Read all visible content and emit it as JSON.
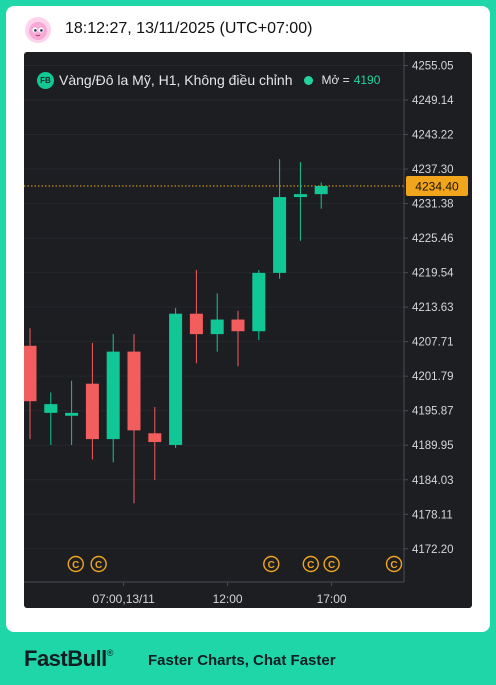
{
  "header": {
    "timestamp": "18:12:27, 13/11/2025 (UTC+07:00)"
  },
  "legend": {
    "badge": "FB",
    "instrument": "Vàng/Đô la Mỹ, H1, Không điều chỉnh",
    "open_label": "Mở =",
    "open_value": "4190"
  },
  "footer": {
    "brand": "FastBull",
    "registered": "®",
    "tagline": "Faster Charts, Chat Faster"
  },
  "colors": {
    "up": "#10c795",
    "down": "#f25d5d",
    "background": "#1d1e22",
    "price_tag": "#f0a51c",
    "event_marker": "#f0a51c"
  },
  "chart_data": {
    "type": "candlestick",
    "y_axis": {
      "min": 4166.5,
      "max": 4256,
      "ticks": [
        "4255.05",
        "4249.14",
        "4243.22",
        "4237.30",
        "4231.38",
        "4225.46",
        "4219.54",
        "4213.63",
        "4207.71",
        "4201.79",
        "4195.87",
        "4189.95",
        "4184.03",
        "4178.11",
        "4172.20"
      ],
      "position": "right"
    },
    "x_axis": {
      "labels": [
        {
          "label": "07:00,13/11",
          "index": 4.5
        },
        {
          "label": "12:00",
          "index": 9.5
        },
        {
          "label": "17:00",
          "index": 14.5
        }
      ]
    },
    "current_price": 4234.4,
    "current_price_label": "4234.40",
    "event_marker_symbol": "C",
    "event_markers_at_index": [
      2.2,
      3.3,
      11.6,
      13.5,
      14.5,
      17.5
    ],
    "candles": [
      {
        "o": 4207.0,
        "h": 4210.0,
        "l": 4191.0,
        "c": 4197.5
      },
      {
        "o": 4195.5,
        "h": 4199.0,
        "l": 4190.0,
        "c": 4197.0
      },
      {
        "o": 4195.0,
        "h": 4201.0,
        "l": 4190.0,
        "c": 4195.5
      },
      {
        "o": 4200.5,
        "h": 4207.5,
        "l": 4187.5,
        "c": 4191.0
      },
      {
        "o": 4191.0,
        "h": 4209.0,
        "l": 4187.0,
        "c": 4206.0
      },
      {
        "o": 4206.0,
        "h": 4209.0,
        "l": 4180.0,
        "c": 4192.5
      },
      {
        "o": 4192.0,
        "h": 4196.5,
        "l": 4184.0,
        "c": 4190.5
      },
      {
        "o": 4190.0,
        "h": 4213.5,
        "l": 4189.5,
        "c": 4212.5
      },
      {
        "o": 4212.5,
        "h": 4220.0,
        "l": 4204.0,
        "c": 4209.0
      },
      {
        "o": 4209.0,
        "h": 4216.0,
        "l": 4206.0,
        "c": 4211.5
      },
      {
        "o": 4211.5,
        "h": 4213.0,
        "l": 4203.5,
        "c": 4209.5
      },
      {
        "o": 4209.5,
        "h": 4220.0,
        "l": 4208.0,
        "c": 4219.5
      },
      {
        "o": 4219.5,
        "h": 4239.0,
        "l": 4218.5,
        "c": 4232.5
      },
      {
        "o": 4232.5,
        "h": 4238.5,
        "l": 4225.0,
        "c": 4233.0
      },
      {
        "o": 4233.0,
        "h": 4235.0,
        "l": 4230.5,
        "c": 4234.4
      }
    ]
  }
}
